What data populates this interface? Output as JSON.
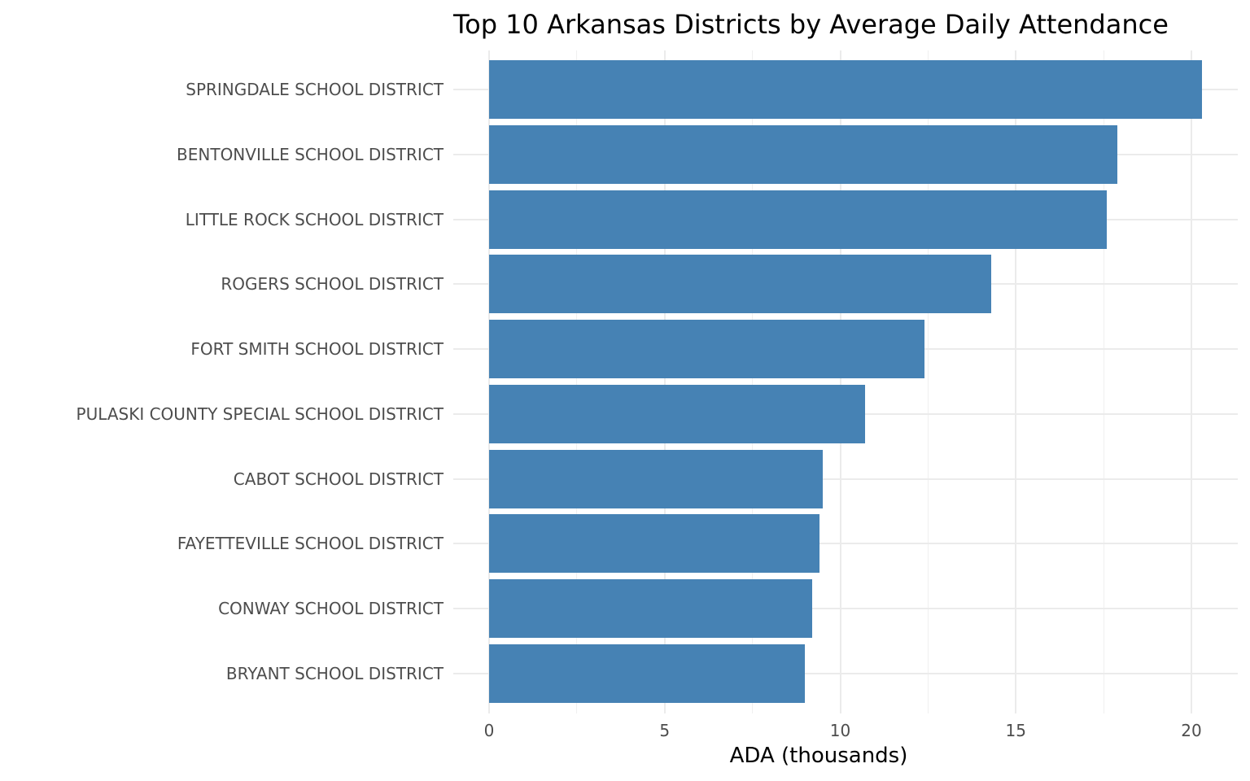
{
  "chart_data": {
    "type": "bar",
    "orientation": "horizontal",
    "title": "Top 10 Arkansas Districts by Average Daily Attendance",
    "xlabel": "ADA (thousands)",
    "ylabel": "",
    "xlim": [
      0,
      21
    ],
    "xticks": [
      0,
      5,
      10,
      15,
      20
    ],
    "xtick_labels": [
      "0",
      "5",
      "10",
      "15",
      "20"
    ],
    "grid": true,
    "legend": null,
    "bar_color": "#4682b4",
    "categories": [
      "SPRINGDALE SCHOOL DISTRICT",
      "BENTONVILLE SCHOOL DISTRICT",
      "LITTLE ROCK SCHOOL DISTRICT",
      "ROGERS SCHOOL DISTRICT",
      "FORT SMITH SCHOOL DISTRICT",
      "PULASKI COUNTY SPECIAL SCHOOL DISTRICT",
      "CABOT SCHOOL DISTRICT",
      "FAYETTEVILLE SCHOOL DISTRICT",
      "CONWAY SCHOOL DISTRICT",
      "BRYANT SCHOOL DISTRICT"
    ],
    "values": [
      20.3,
      17.9,
      17.6,
      14.3,
      12.4,
      10.7,
      9.5,
      9.4,
      9.2,
      9.0
    ]
  }
}
